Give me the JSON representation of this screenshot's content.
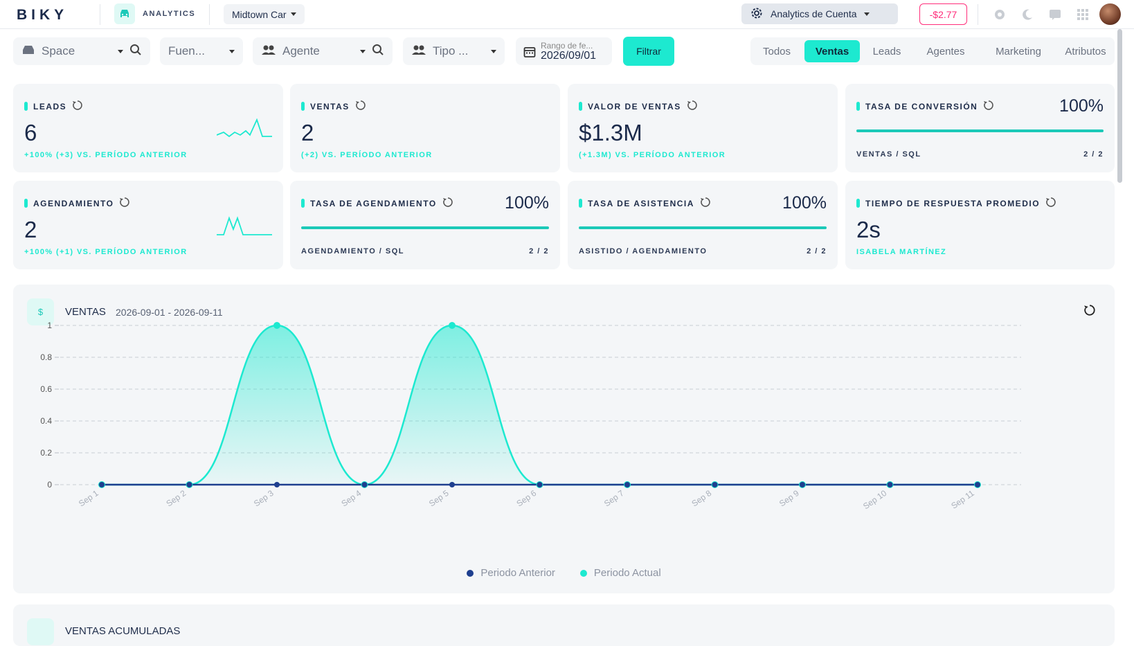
{
  "topbar": {
    "logo": "BIKY",
    "app_label": "ANALYTICS",
    "company": "Midtown Car",
    "account_menu": "Analytics de Cuenta",
    "balance": "-$2.77",
    "icons": [
      "car-icon",
      "gear-icon",
      "settings-icon",
      "moon-icon",
      "translate-icon",
      "apps-grid-icon",
      "avatar"
    ]
  },
  "filters": {
    "space": "Space",
    "fuente": "Fuen...",
    "agente": "Agente",
    "tipo": "Tipo ...",
    "date_label": "Rango de fe...",
    "date_value": "2026/09/01",
    "filter_button": "Filtrar"
  },
  "tabs": [
    "Todos",
    "Ventas",
    "Leads",
    "Agentes",
    "Marketing",
    "Atributos"
  ],
  "active_tab": "Ventas",
  "kpis": {
    "leads": {
      "title": "LEADS",
      "value": "6",
      "sub": "+100% (+3) VS. PERÍODO ANTERIOR"
    },
    "ventas": {
      "title": "VENTAS",
      "value": "2",
      "sub": "(+2) VS. PERÍODO ANTERIOR"
    },
    "valor": {
      "title": "VALOR DE VENTAS",
      "value": "$1.3M",
      "sub": "(+1.3M) VS. PERÍODO ANTERIOR"
    },
    "conversion": {
      "title": "TASA DE CONVERSIÓN",
      "pct": "100%",
      "ratio_label": "VENTAS / SQL",
      "ratio": "2 / 2",
      "fill": 1.0
    },
    "agendamiento": {
      "title": "AGENDAMIENTO",
      "value": "2",
      "sub": "+100% (+1) VS. PERÍODO ANTERIOR"
    },
    "tasa_agendamiento": {
      "title": "TASA DE AGENDAMIENTO",
      "pct": "100%",
      "ratio_label": "AGENDAMIENTO / SQL",
      "ratio": "2 / 2",
      "fill": 1.0
    },
    "tasa_asistencia": {
      "title": "TASA DE ASISTENCIA",
      "pct": "100%",
      "ratio_label": "ASISTIDO / AGENDAMIENTO",
      "ratio": "2 / 2",
      "fill": 1.0
    },
    "tiempo": {
      "title": "TIEMPO DE RESPUESTA PROMEDIO",
      "value": "2s",
      "sub": "ISABELA MARTÍNEZ"
    }
  },
  "chart": {
    "icon_text": "$",
    "title": "VENTAS",
    "range": "2026-09-01 - 2026-09-11"
  },
  "chart_data": {
    "type": "area",
    "categories": [
      "Sep 1",
      "Sep 2",
      "Sep 3",
      "Sep 4",
      "Sep 5",
      "Sep 6",
      "Sep 7",
      "Sep 8",
      "Sep 9",
      "Sep 10",
      "Sep 11"
    ],
    "series": [
      {
        "name": "Periodo Anterior",
        "values": [
          0,
          0,
          0,
          0,
          0,
          0,
          0,
          0,
          0,
          0,
          0
        ],
        "color": "#1e3f8f"
      },
      {
        "name": "Periodo Actual",
        "values": [
          0,
          0,
          1,
          0,
          1,
          0,
          0,
          0,
          0,
          0,
          0
        ],
        "color": "#1de9d0"
      }
    ],
    "ylim": [
      0,
      1
    ],
    "yticks": [
      "0",
      "0.2",
      "0.4",
      "0.6",
      "0.8",
      "1"
    ],
    "grid": true,
    "legend_position": "bottom"
  },
  "second_card": {
    "title": "VENTAS ACUMULADAS"
  }
}
